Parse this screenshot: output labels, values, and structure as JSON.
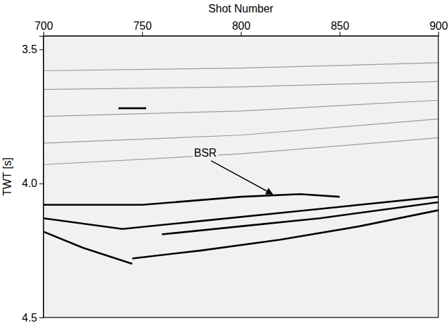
{
  "chart_data": {
    "type": "line",
    "x_label": "Shot Number",
    "y_label": "TWT [s]",
    "xlim": [
      700,
      900
    ],
    "xticks": [
      700,
      750,
      800,
      850,
      900
    ],
    "ylim": [
      4.5,
      3.45
    ],
    "yticks": [
      3.5,
      {
        "value": 4,
        "label": "4.0"
      },
      4.5
    ],
    "tick_labels": true,
    "series": [
      {
        "color": "#9a9a9a",
        "x": [
          700,
          800,
          900
        ],
        "values": [
          3.58,
          3.57,
          3.55
        ]
      },
      {
        "color": "#9a9a9a",
        "x": [
          700,
          800,
          900
        ],
        "values": [
          3.65,
          3.64,
          3.62
        ]
      },
      {
        "color": "#9a9a9a",
        "x": [
          700,
          800,
          900
        ],
        "values": [
          3.75,
          3.73,
          3.69
        ]
      },
      {
        "color": "#9a9a9a",
        "x": [
          700,
          800,
          900
        ],
        "values": [
          3.85,
          3.82,
          3.76
        ]
      },
      {
        "color": "#9a9a9a",
        "x": [
          700,
          800,
          900
        ],
        "values": [
          3.93,
          3.89,
          3.83
        ]
      },
      {
        "color": "#000000",
        "x": [
          738,
          752
        ],
        "values": [
          3.72,
          3.72
        ]
      },
      {
        "color": "#000000",
        "x": [
          700,
          750,
          800,
          830,
          850
        ],
        "values": [
          4.08,
          4.08,
          4.05,
          4.04,
          4.05
        ]
      },
      {
        "color": "#000000",
        "x": [
          700,
          740,
          780,
          820,
          860,
          900
        ],
        "values": [
          4.13,
          4.17,
          4.14,
          4.11,
          4.08,
          4.05
        ]
      },
      {
        "color": "#000000",
        "x": [
          745,
          780,
          820,
          860,
          900
        ],
        "values": [
          4.28,
          4.25,
          4.21,
          4.16,
          4.1
        ]
      },
      {
        "color": "#000000",
        "x": [
          700,
          720,
          745
        ],
        "values": [
          4.18,
          4.24,
          4.3
        ]
      },
      {
        "color": "#000000",
        "x": [
          760,
          800,
          840,
          880,
          900
        ],
        "values": [
          4.19,
          4.16,
          4.13,
          4.09,
          4.07
        ]
      }
    ],
    "annotations": [
      {
        "text": "BSR",
        "x": 782,
        "y": 3.9,
        "arrow_x": 816,
        "arrow_y": 4.04
      }
    ]
  }
}
